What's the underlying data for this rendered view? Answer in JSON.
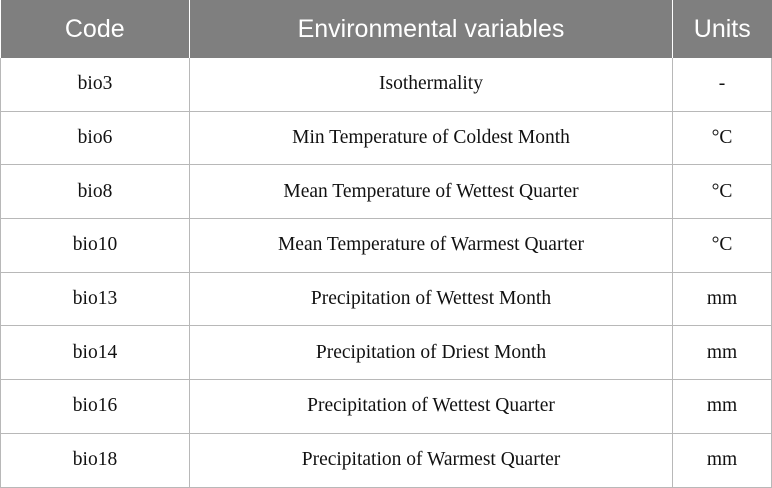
{
  "table": {
    "headers": {
      "code": "Code",
      "variable": "Environmental variables",
      "units": "Units"
    },
    "rows": [
      {
        "code": "bio3",
        "variable": "Isothermality",
        "units": "-"
      },
      {
        "code": "bio6",
        "variable": "Min Temperature of Coldest Month",
        "units": "°C"
      },
      {
        "code": "bio8",
        "variable": "Mean Temperature of Wettest Quarter",
        "units": "°C"
      },
      {
        "code": "bio10",
        "variable": "Mean Temperature of Warmest Quarter",
        "units": "°C"
      },
      {
        "code": "bio13",
        "variable": "Precipitation of Wettest Month",
        "units": "mm"
      },
      {
        "code": "bio14",
        "variable": "Precipitation of Driest Month",
        "units": "mm"
      },
      {
        "code": "bio16",
        "variable": "Precipitation of Wettest Quarter",
        "units": "mm"
      },
      {
        "code": "bio18",
        "variable": "Precipitation of Warmest Quarter",
        "units": "mm"
      }
    ]
  },
  "colors": {
    "header_bg": "#7f7f7f",
    "header_text": "#ffffff",
    "border": "#b8b8b8"
  }
}
